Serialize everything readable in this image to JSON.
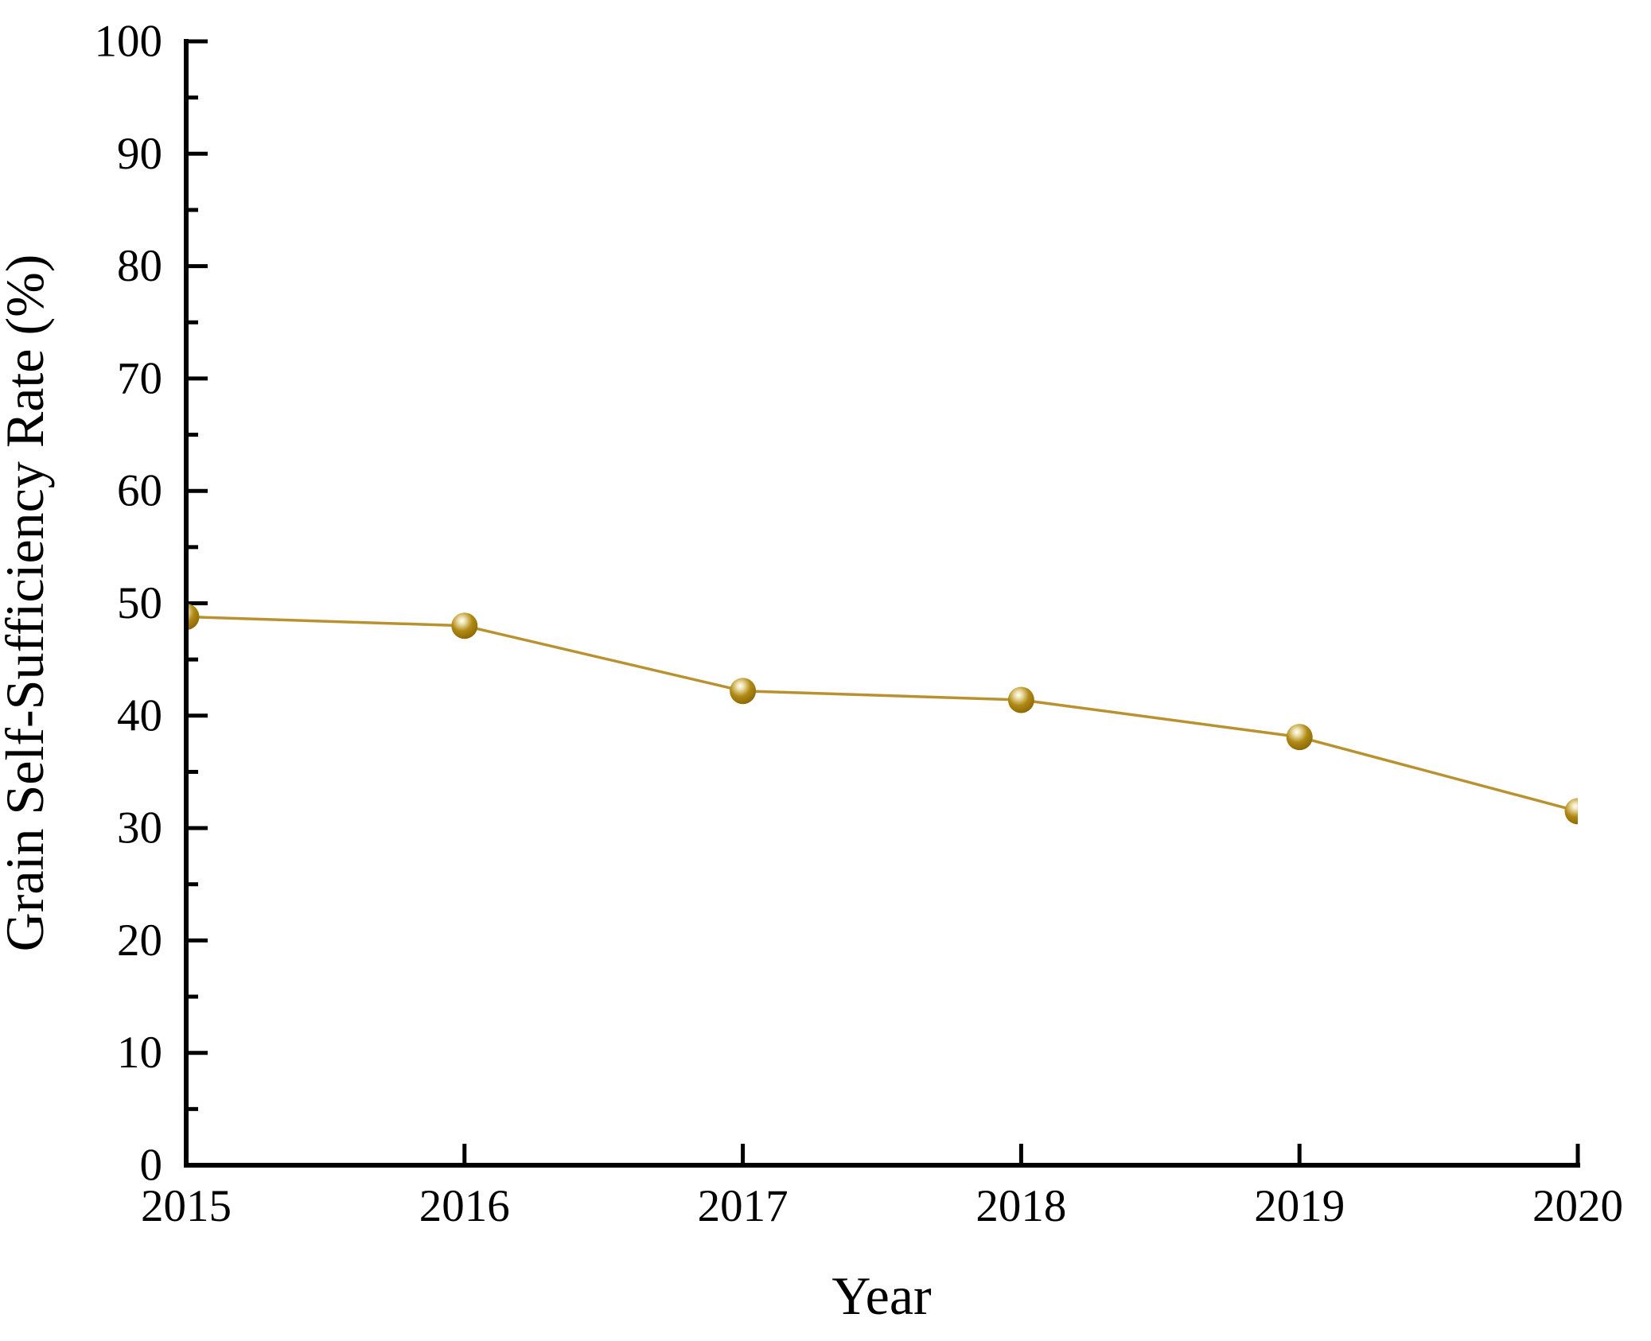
{
  "chart_data": {
    "type": "line",
    "title": "",
    "xlabel": "Year",
    "ylabel": "Grain Self-Sufficiency Rate (%)",
    "x": [
      2015,
      2016,
      2017,
      2018,
      2019,
      2020
    ],
    "series": [
      {
        "name": "Grain Self-Sufficiency Rate",
        "values": [
          48.8,
          48.0,
          42.2,
          41.4,
          38.1,
          31.5
        ]
      }
    ],
    "x_tick_labels": [
      "2015",
      "2016",
      "2017",
      "2018",
      "2019",
      "2020"
    ],
    "y_tick_labels": [
      "0",
      "10",
      "20",
      "30",
      "40",
      "50",
      "60",
      "70",
      "80",
      "90",
      "100"
    ],
    "xlim": [
      2015,
      2020
    ],
    "ylim": [
      0,
      100
    ],
    "y_major_step": 10,
    "y_minor_step": 5,
    "grid": false,
    "legend_position": "none",
    "tick_direction": "in",
    "colors": {
      "axis": "#000000",
      "tick_label": "#000000",
      "line": "#B8922F",
      "marker_highlight": "#FFFFFF",
      "marker_light": "#EFE2B0",
      "marker_base": "#B08A14",
      "marker_rim": "#8A6705",
      "background": "#FFFFFF"
    },
    "marker": "sphere"
  }
}
